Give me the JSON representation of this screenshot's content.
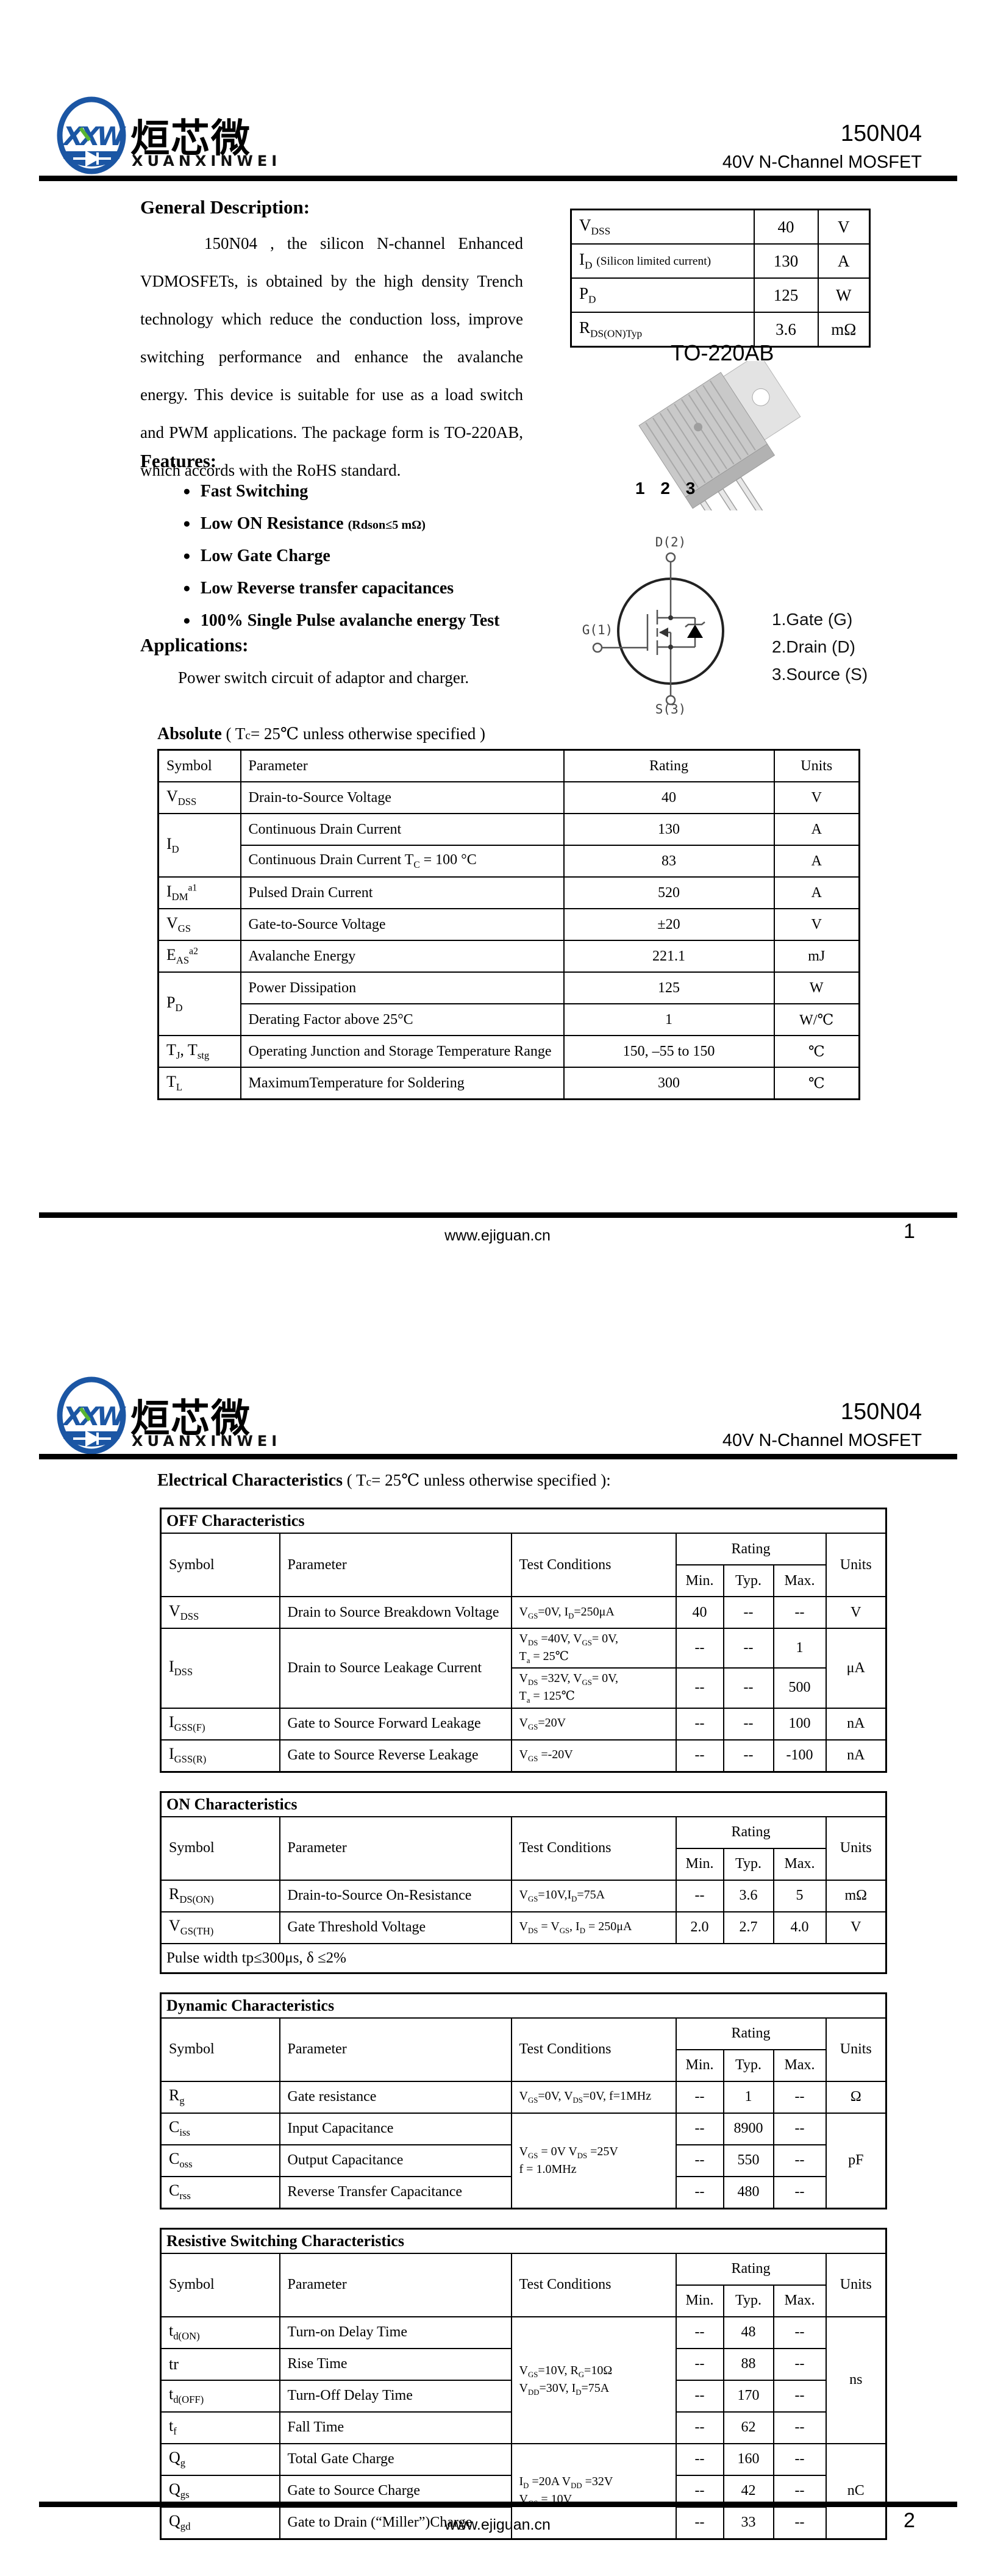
{
  "brand_colors": {
    "blue": "#1b56a4",
    "green": "#58b531"
  },
  "header": {
    "logo_letters": "XXW",
    "brand_cn": "烜芯微",
    "brand_en": "XUANXINWEI",
    "part": "150N04",
    "subtitle": "40V N-Channel MOSFET"
  },
  "footer": {
    "url": "www.ejiguan.cn",
    "page1": "1",
    "page2": "2"
  },
  "page1": {
    "general": {
      "heading": "General Description:",
      "paragraph": "150N04 , the silicon N-channel Enhanced VDMOSFETs, is obtained by the high density Trench technology which reduce the conduction loss, improve switching performance and enhance the avalanche energy. This device is suitable for use as a load switch and PWM applications. The package form is TO-220AB, which accords with the RoHS standard."
    },
    "summary_table": {
      "widths": [
        300,
        105,
        85
      ],
      "rows": [
        [
          {
            "t": "V~DSS~",
            "cls": "l sym"
          },
          "40",
          "V"
        ],
        [
          {
            "t": "I~D~ §(Silicon limited current)§",
            "cls": "l sym"
          },
          "130",
          "A"
        ],
        [
          {
            "t": "P~D~",
            "cls": "l sym"
          },
          "125",
          "W"
        ],
        [
          {
            "t": "R~DS(ON)Typ~",
            "cls": "l sym"
          },
          "3.6",
          "mΩ"
        ]
      ]
    },
    "package": {
      "title": "TO-220AB",
      "pins": "1 2 3"
    },
    "features": {
      "heading": "Features:",
      "items": [
        "Fast Switching",
        "Low ON Resistance §(Rdson≤5  mΩ)§",
        "Low Gate Charge",
        "Low Reverse transfer capacitances",
        "100% Single Pulse avalanche energy Test"
      ]
    },
    "applications": {
      "heading": "Applications:",
      "text": "Power switch circuit of adaptor and charger."
    },
    "symbol": {
      "d": "D(2)",
      "g": "G(1)",
      "s": "S(3)",
      "legend": [
        "1.Gate (G)",
        "2.Drain (D)",
        "3.Source (S)"
      ]
    },
    "absolute": {
      "heading_main": "Absolute",
      "heading_note": "( T§c§= 25℃  unless otherwise specified )",
      "table": {
        "widths": [
          135,
          530,
          345,
          140
        ],
        "rows": [
          [
            {
              "t": "Symbol",
              "cls": "l"
            },
            {
              "t": "Parameter",
              "cls": "l"
            },
            "Rating",
            "Units"
          ],
          [
            {
              "t": "V~DSS~",
              "cls": "l sym"
            },
            {
              "t": "Drain-to-Source Voltage",
              "cls": "l"
            },
            "40",
            "V"
          ],
          [
            {
              "t": "I~D~",
              "cls": "l sym",
              "rs": 2
            },
            {
              "t": "Continuous Drain Current",
              "cls": "l"
            },
            "130",
            "A"
          ],
          [
            {
              "t": "Continuous Drain Current T~C~ = 100 °C",
              "cls": "l"
            },
            "83",
            "A"
          ],
          [
            {
              "t": "I~DM~^a1^",
              "cls": "l sym"
            },
            {
              "t": "Pulsed Drain Current",
              "cls": "l"
            },
            "520",
            "A"
          ],
          [
            {
              "t": "V~GS~",
              "cls": "l sym"
            },
            {
              "t": "Gate-to-Source Voltage",
              "cls": "l"
            },
            "±20",
            "V"
          ],
          [
            {
              "t": "E~AS~^a2^",
              "cls": "l sym"
            },
            {
              "t": "Avalanche Energy",
              "cls": "l"
            },
            "221.1",
            "mJ"
          ],
          [
            {
              "t": "P~D~",
              "cls": "l sym",
              "rs": 2
            },
            {
              "t": "Power Dissipation",
              "cls": "l"
            },
            "125",
            "W"
          ],
          [
            {
              "t": "Derating Factor above 25°C",
              "cls": "l"
            },
            "1",
            "W/℃"
          ],
          [
            {
              "t": "T~J~,  T~stg~",
              "cls": "l sym"
            },
            {
              "t": "Operating Junction and Storage Temperature Range",
              "cls": "l"
            },
            "150, –55 to 150",
            "℃"
          ],
          [
            {
              "t": "T~L~",
              "cls": "l sym"
            },
            {
              "t": "MaximumTemperature for Soldering",
              "cls": "l"
            },
            "300",
            "℃"
          ]
        ]
      }
    }
  },
  "page2": {
    "heading_main": "Electrical Characteristics",
    "heading_note": "( T§c§= 25℃ unless otherwise specified ):",
    "off": {
      "widths": [
        195,
        380,
        270,
        78,
        82,
        86,
        99
      ],
      "rows": [
        [
          {
            "t": "OFF Characteristics",
            "cs": 7,
            "cls": "tt"
          }
        ],
        [
          {
            "t": "Symbol",
            "cls": "l",
            "rs": 2
          },
          {
            "t": "Parameter",
            "cls": "l",
            "rs": 2
          },
          {
            "t": "Test Conditions",
            "cls": "l",
            "rs": 2
          },
          {
            "t": "Rating",
            "cs": 3
          },
          {
            "t": "Units",
            "rs": 2
          }
        ],
        [
          "Min.",
          "Typ.",
          "Max."
        ],
        [
          {
            "t": "V~DSS~",
            "cls": "l sym"
          },
          {
            "t": "Drain to Source Breakdown Voltage",
            "cls": "l"
          },
          {
            "t": "V~GS~=0V, I~D~=250μA",
            "cls": "l sm"
          },
          "40",
          "--",
          "--",
          "V"
        ],
        [
          {
            "t": "I~DSS~",
            "cls": "l sym",
            "rs": 2
          },
          {
            "t": "Drain to Source Leakage Current",
            "cls": "l",
            "rs": 2
          },
          {
            "t": "V~DS~ =40V, V~GS~= 0V,\nT~a~ = 25℃",
            "cls": "l sm"
          },
          "--",
          "--",
          "1",
          {
            "t": "μA",
            "rs": 2
          }
        ],
        [
          {
            "t": "V~DS~ =32V, V~GS~= 0V,\nT~a~ = 125℃",
            "cls": "l sm"
          },
          "--",
          "--",
          "500"
        ],
        [
          {
            "t": "I~GSS(F)~",
            "cls": "l sym"
          },
          {
            "t": "Gate to Source Forward Leakage",
            "cls": "l"
          },
          {
            "t": "V~GS~=20V",
            "cls": "l sm"
          },
          "--",
          "--",
          "100",
          "nA"
        ],
        [
          {
            "t": "I~GSS(R)~",
            "cls": "l sym"
          },
          {
            "t": "Gate to Source Reverse Leakage",
            "cls": "l"
          },
          {
            "t": "V~GS~ =-20V",
            "cls": "l sm"
          },
          "--",
          "--",
          "-100",
          "nA"
        ]
      ]
    },
    "on": {
      "widths": [
        195,
        380,
        270,
        78,
        82,
        86,
        99
      ],
      "rows": [
        [
          {
            "t": "ON Characteristics",
            "cs": 7,
            "cls": "tt"
          }
        ],
        [
          {
            "t": "Symbol",
            "cls": "l",
            "rs": 2
          },
          {
            "t": "Parameter",
            "cls": "l",
            "rs": 2
          },
          {
            "t": "Test Conditions",
            "cls": "l",
            "rs": 2
          },
          {
            "t": "Rating",
            "cs": 3
          },
          {
            "t": "Units",
            "rs": 2
          }
        ],
        [
          "Min.",
          "Typ.",
          "Max."
        ],
        [
          {
            "t": "R~DS(ON)~",
            "cls": "l sym"
          },
          {
            "t": "Drain-to-Source On-Resistance",
            "cls": "l"
          },
          {
            "t": "V~GS~=10V,I~D~=75A",
            "cls": "l sm"
          },
          "--",
          "3.6",
          "5",
          "mΩ"
        ],
        [
          {
            "t": "V~GS(TH)~",
            "cls": "l sym"
          },
          {
            "t": "Gate Threshold Voltage",
            "cls": "l"
          },
          {
            "t": "V~DS~ = V~GS~, I~D~ = 250μA",
            "cls": "l sm"
          },
          "2.0",
          "2.7",
          "4.0",
          "V"
        ],
        [
          {
            "t": "Pulse width tp≤300μs, δ ≤2%",
            "cs": 7,
            "cls": "note"
          }
        ]
      ]
    },
    "dynamic": {
      "widths": [
        195,
        380,
        270,
        78,
        82,
        86,
        99
      ],
      "rows": [
        [
          {
            "t": "Dynamic Characteristics",
            "cs": 7,
            "cls": "tt"
          }
        ],
        [
          {
            "t": "Symbol",
            "cls": "l",
            "rs": 2
          },
          {
            "t": "Parameter",
            "cls": "l",
            "rs": 2
          },
          {
            "t": "Test Conditions",
            "cls": "l",
            "rs": 2
          },
          {
            "t": "Rating",
            "cs": 3
          },
          {
            "t": "Units",
            "rs": 2
          }
        ],
        [
          "Min.",
          "Typ.",
          "Max."
        ],
        [
          {
            "t": "R~g~",
            "cls": "l sym"
          },
          {
            "t": "Gate resistance",
            "cls": "l"
          },
          {
            "t": "V~GS~=0V, V~DS~=0V, f=1MHz",
            "cls": "l sm"
          },
          "--",
          "1",
          "--",
          "Ω"
        ],
        [
          {
            "t": "C~iss~",
            "cls": "l sym"
          },
          {
            "t": "Input Capacitance",
            "cls": "l"
          },
          {
            "t": "V~GS~ = 0V V~DS~ =25V\nf = 1.0MHz",
            "cls": "l sm",
            "rs": 3
          },
          "--",
          "8900",
          "--",
          {
            "t": "pF",
            "rs": 3
          }
        ],
        [
          {
            "t": "C~oss~",
            "cls": "l sym"
          },
          {
            "t": "Output Capacitance",
            "cls": "l"
          },
          "--",
          "550",
          "--"
        ],
        [
          {
            "t": "C~rss~",
            "cls": "l sym"
          },
          {
            "t": "Reverse Transfer Capacitance",
            "cls": "l"
          },
          "--",
          "480",
          "--"
        ]
      ]
    },
    "resistive": {
      "widths": [
        195,
        380,
        270,
        78,
        82,
        86,
        99
      ],
      "rows": [
        [
          {
            "t": "Resistive Switching Characteristics",
            "cs": 7,
            "cls": "tt"
          }
        ],
        [
          {
            "t": "Symbol",
            "cls": "l",
            "rs": 2
          },
          {
            "t": "Parameter",
            "cls": "l",
            "rs": 2
          },
          {
            "t": "Test Conditions",
            "cls": "l",
            "rs": 2
          },
          {
            "t": "Rating",
            "cs": 3
          },
          {
            "t": "Units",
            "rs": 2
          }
        ],
        [
          "Min.",
          "Typ.",
          "Max."
        ],
        [
          {
            "t": "t~d(ON)~",
            "cls": "l sym"
          },
          {
            "t": "Turn-on Delay Time",
            "cls": "l"
          },
          {
            "t": "V~GS~=10V,  R~G~=10Ω\nV~DD~=30V,  I~D~=75A",
            "cls": "l sm",
            "rs": 4
          },
          "--",
          "48",
          "--",
          {
            "t": "ns",
            "rs": 4
          }
        ],
        [
          {
            "t": "tr",
            "cls": "l sym"
          },
          {
            "t": "Rise Time",
            "cls": "l"
          },
          "--",
          "88",
          "--"
        ],
        [
          {
            "t": "t~d(OFF)~",
            "cls": "l sym"
          },
          {
            "t": "Turn-Off Delay Time",
            "cls": "l"
          },
          "--",
          "170",
          "--"
        ],
        [
          {
            "t": "t~f~",
            "cls": "l sym"
          },
          {
            "t": "Fall Time",
            "cls": "l"
          },
          "--",
          "62",
          "--"
        ],
        [
          {
            "t": "Q~g~",
            "cls": "l sym"
          },
          {
            "t": "Total Gate Charge",
            "cls": "l"
          },
          {
            "t": "I~D~ =20A   V~DD~ =32V\nV~GS~ = 10V",
            "cls": "l sm",
            "rs": 3
          },
          "--",
          "160",
          "--",
          {
            "t": "nC",
            "rs": 3
          }
        ],
        [
          {
            "t": "Q~gs~",
            "cls": "l sym"
          },
          {
            "t": "Gate to Source Charge",
            "cls": "l"
          },
          "--",
          "42",
          "--"
        ],
        [
          {
            "t": "Q~gd~",
            "cls": "l sym"
          },
          {
            "t": "Gate to Drain (“Miller”)Charge",
            "cls": "l"
          },
          "--",
          "33",
          "--"
        ]
      ]
    }
  }
}
